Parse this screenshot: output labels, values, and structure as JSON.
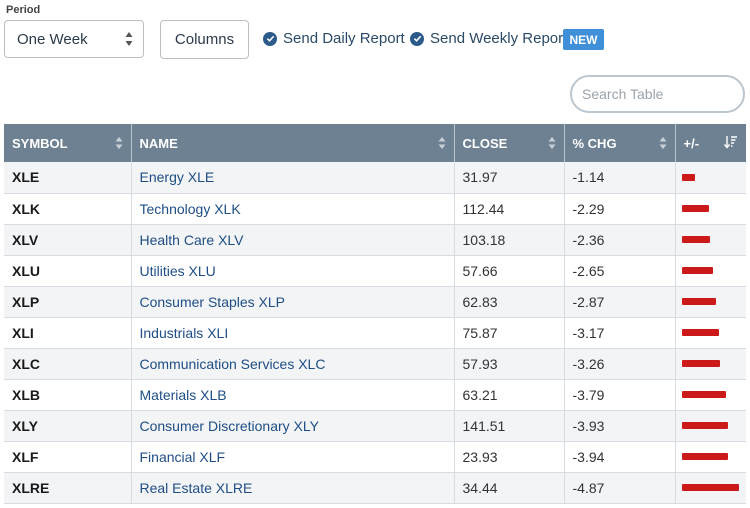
{
  "period": {
    "label": "Period",
    "selected": "One Week"
  },
  "toolbar": {
    "columns_label": "Columns",
    "daily_report_label": "Send Daily Report",
    "weekly_report_label": "Send Weekly Report",
    "new_badge": "NEW"
  },
  "search": {
    "placeholder": "Search Table"
  },
  "colors": {
    "header_bg": "#6e8193",
    "name_link": "#1f4e85",
    "negative_bar": "#cc1a1a",
    "badge": "#3f8fd9"
  },
  "table": {
    "columns": [
      "SYMBOL",
      "NAME",
      "CLOSE",
      "% CHG",
      "+/-"
    ],
    "sort_column": "+/-",
    "rows": [
      {
        "symbol": "XLE",
        "name": "Energy XLE",
        "close": "31.97",
        "chg": "-1.14",
        "change_value": -1.14
      },
      {
        "symbol": "XLK",
        "name": "Technology XLK",
        "close": "112.44",
        "chg": "-2.29",
        "change_value": -2.29
      },
      {
        "symbol": "XLV",
        "name": "Health Care XLV",
        "close": "103.18",
        "chg": "-2.36",
        "change_value": -2.36
      },
      {
        "symbol": "XLU",
        "name": "Utilities XLU",
        "close": "57.66",
        "chg": "-2.65",
        "change_value": -2.65
      },
      {
        "symbol": "XLP",
        "name": "Consumer Staples XLP",
        "close": "62.83",
        "chg": "-2.87",
        "change_value": -2.87
      },
      {
        "symbol": "XLI",
        "name": "Industrials XLI",
        "close": "75.87",
        "chg": "-3.17",
        "change_value": -3.17
      },
      {
        "symbol": "XLC",
        "name": "Communication Services XLC",
        "close": "57.93",
        "chg": "-3.26",
        "change_value": -3.26
      },
      {
        "symbol": "XLB",
        "name": "Materials XLB",
        "close": "63.21",
        "chg": "-3.79",
        "change_value": -3.79
      },
      {
        "symbol": "XLY",
        "name": "Consumer Discretionary XLY",
        "close": "141.51",
        "chg": "-3.93",
        "change_value": -3.93
      },
      {
        "symbol": "XLF",
        "name": "Financial XLF",
        "close": "23.93",
        "chg": "-3.94",
        "change_value": -3.94
      },
      {
        "symbol": "XLRE",
        "name": "Real Estate XLRE",
        "close": "34.44",
        "chg": "-4.87",
        "change_value": -4.87
      }
    ]
  }
}
